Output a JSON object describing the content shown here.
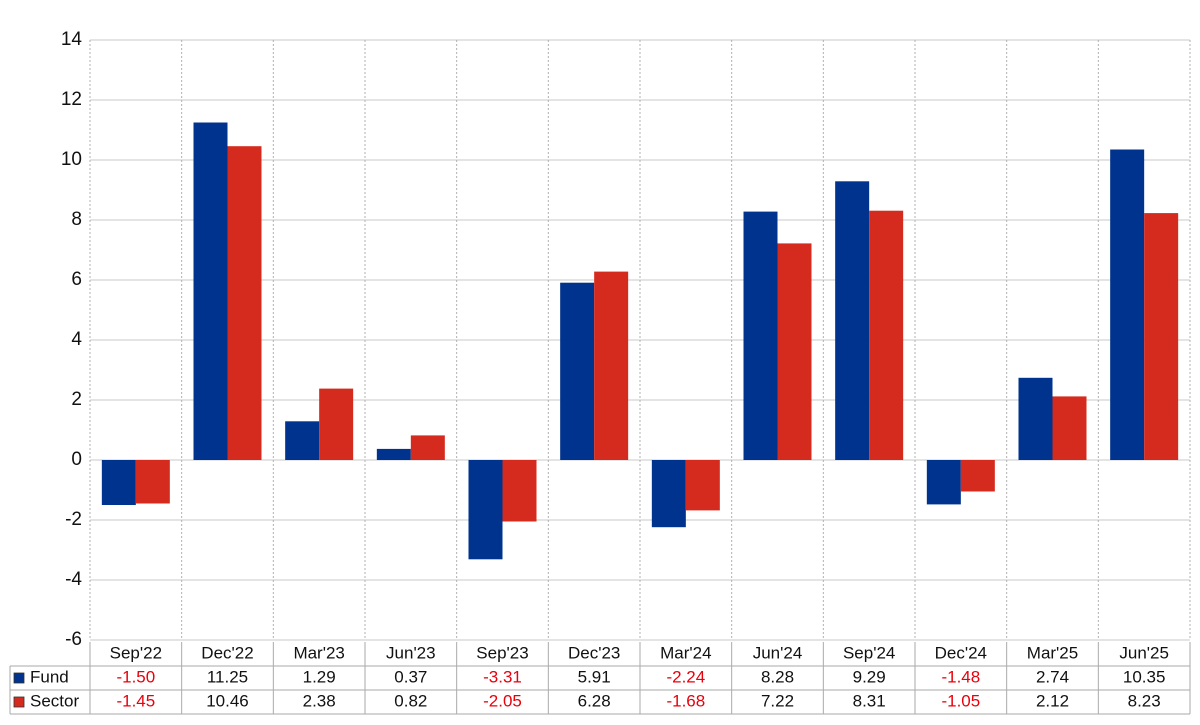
{
  "chart_data": {
    "type": "bar",
    "categories": [
      "Sep'22",
      "Dec'22",
      "Mar'23",
      "Jun'23",
      "Sep'23",
      "Dec'23",
      "Mar'24",
      "Jun'24",
      "Sep'24",
      "Dec'24",
      "Mar'25",
      "Jun'25"
    ],
    "series": [
      {
        "name": "Fund",
        "color": "#00338d",
        "values": [
          -1.5,
          11.25,
          1.29,
          0.37,
          -3.31,
          5.91,
          -2.24,
          8.28,
          9.29,
          -1.48,
          2.74,
          10.35
        ],
        "value_labels": [
          "-1.50",
          "11.25",
          "1.29",
          "0.37",
          "-3.31",
          "5.91",
          "-2.24",
          "8.28",
          "9.29",
          "-1.48",
          "2.74",
          "10.35"
        ]
      },
      {
        "name": "Sector",
        "color": "#d52b1e",
        "values": [
          -1.45,
          10.46,
          2.38,
          0.82,
          -2.05,
          6.28,
          -1.68,
          7.22,
          8.31,
          -1.05,
          2.12,
          8.23
        ],
        "value_labels": [
          "-1.45",
          "10.46",
          "2.38",
          "0.82",
          "-2.05",
          "6.28",
          "-1.68",
          "7.22",
          "8.31",
          "-1.05",
          "2.12",
          "8.23"
        ]
      }
    ],
    "ylim": [
      -6,
      14
    ],
    "yticks": [
      -6,
      -4,
      -2,
      0,
      2,
      4,
      6,
      8,
      10,
      12,
      14
    ],
    "grid": true,
    "negative_color": "#e8000b"
  }
}
